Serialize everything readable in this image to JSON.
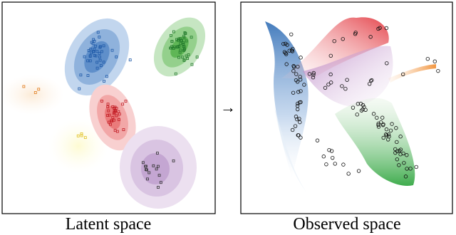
{
  "panels": [
    {
      "caption": "Latent space"
    },
    {
      "caption": "Observed space"
    }
  ],
  "arrow": "→"
}
